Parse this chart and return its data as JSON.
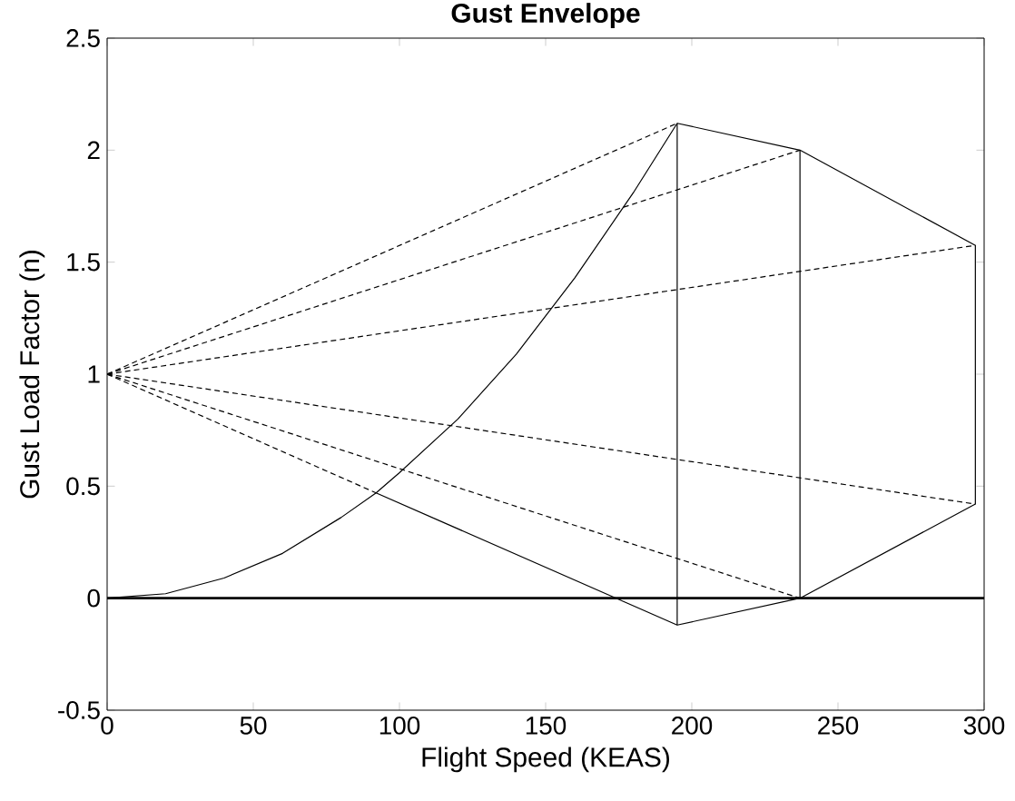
{
  "chart_data": {
    "type": "line",
    "title": "Gust Envelope",
    "xlabel": "Flight Speed (KEAS)",
    "ylabel": "Gust Load Factor (n)",
    "xlim": [
      0,
      300
    ],
    "ylim": [
      -0.5,
      2.5
    ],
    "xticks": [
      0,
      50,
      100,
      150,
      200,
      250,
      300
    ],
    "yticks": [
      -0.5,
      0,
      0.5,
      1,
      1.5,
      2,
      2.5
    ],
    "series": [
      {
        "color": "#000000",
        "line_style": "solid",
        "x": [
          0,
          20,
          40,
          60,
          80,
          92,
          100,
          120,
          140,
          160,
          180,
          195
        ],
        "values": [
          0,
          0.02,
          0.09,
          0.2,
          0.36,
          0.47,
          0.56,
          0.8,
          1.09,
          1.43,
          1.81,
          2.12
        ]
      },
      {
        "color": "#000000",
        "line_style": "solid",
        "x": [
          195,
          237,
          297,
          297,
          237,
          195,
          92
        ],
        "values": [
          2.12,
          2.0,
          1.575,
          0.42,
          0,
          -0.12,
          0.47
        ]
      },
      {
        "color": "#000000",
        "line_style": "solid",
        "x": [
          195,
          195
        ],
        "values": [
          2.12,
          -0.12
        ]
      },
      {
        "color": "#000000",
        "line_style": "solid",
        "x": [
          237,
          237
        ],
        "values": [
          2.0,
          0
        ]
      },
      {
        "color": "#000000",
        "line_style": "dashed",
        "x": [
          0,
          195
        ],
        "values": [
          1,
          2.12
        ]
      },
      {
        "color": "#000000",
        "line_style": "dashed",
        "x": [
          0,
          237
        ],
        "values": [
          1,
          2.0
        ]
      },
      {
        "color": "#000000",
        "line_style": "dashed",
        "x": [
          0,
          297
        ],
        "values": [
          1,
          1.575
        ]
      },
      {
        "color": "#000000",
        "line_style": "dashed",
        "x": [
          0,
          297
        ],
        "values": [
          1,
          0.42
        ]
      },
      {
        "color": "#000000",
        "line_style": "dashed",
        "x": [
          0,
          237
        ],
        "values": [
          1,
          0
        ]
      },
      {
        "color": "#000000",
        "line_style": "dashed",
        "x": [
          0,
          92
        ],
        "values": [
          1,
          0.47
        ]
      }
    ],
    "ref_lines": [
      {
        "axis": "y",
        "value": 0,
        "color": "#000000"
      }
    ]
  }
}
